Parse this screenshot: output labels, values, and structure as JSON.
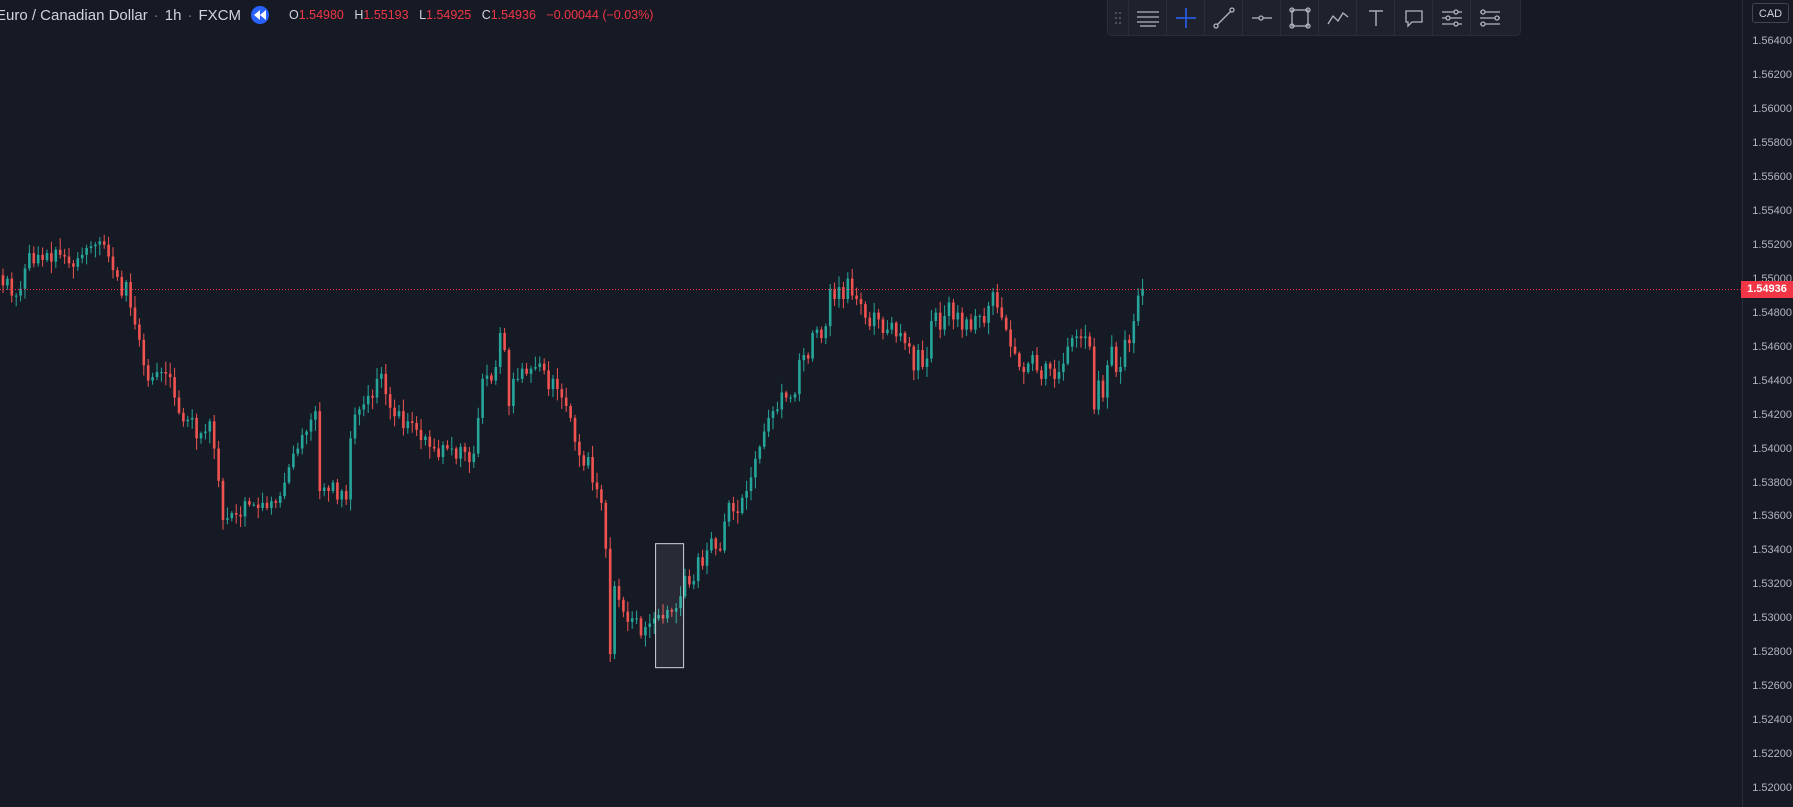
{
  "legend": {
    "symbol": "Euro / Canadian Dollar",
    "interval": "1h",
    "exchange": "FXCM",
    "open_label": "O",
    "open": "1.54980",
    "high_label": "H",
    "high": "1.55193",
    "low_label": "L",
    "low": "1.54925",
    "close_label": "C",
    "close": "1.54936",
    "change": "−0.00044 (−0.03%)"
  },
  "toolbar": {
    "tools": [
      "grip-icon",
      "horizontal-lines-icon",
      "crosshair-icon",
      "trend-line-icon",
      "horizontal-ray-icon",
      "rectangle-icon",
      "path-icon",
      "text-icon",
      "callout-icon",
      "settings-lines-icon",
      "object-tree-icon"
    ]
  },
  "price_axis": {
    "currency_button": "CAD",
    "current_price_badge": "1.54936"
  },
  "colors": {
    "background": "#161a25",
    "up": "#26a69a",
    "down": "#ef5350",
    "price_line": "#f23645",
    "accent": "#2962ff"
  },
  "chart_data": {
    "type": "candlestick",
    "title": "Euro / Canadian Dollar · 1h · FXCM",
    "ylim": [
      1.5189,
      1.5664
    ],
    "y_ticks": [
      "1.56400",
      "1.56200",
      "1.56000",
      "1.55800",
      "1.55600",
      "1.55400",
      "1.55200",
      "1.55000",
      "1.54800",
      "1.54600",
      "1.54400",
      "1.54200",
      "1.54000",
      "1.53800",
      "1.53600",
      "1.53400",
      "1.53200",
      "1.53000",
      "1.52800",
      "1.52600",
      "1.52400",
      "1.52200",
      "1.52000"
    ],
    "current_price": 1.54936,
    "highlighted_candle_index": 151,
    "close_series": [
      1.5496,
      1.55,
      1.549,
      1.549,
      1.5494,
      1.5506,
      1.5515,
      1.5509,
      1.5514,
      1.5511,
      1.5515,
      1.551,
      1.5517,
      1.5514,
      1.5513,
      1.5509,
      1.5507,
      1.5512,
      1.5514,
      1.5518,
      1.5519,
      1.552,
      1.5522,
      1.552,
      1.5513,
      1.5505,
      1.5501,
      1.549,
      1.5498,
      1.5483,
      1.5473,
      1.5464,
      1.5449,
      1.544,
      1.5442,
      1.5445,
      1.5445,
      1.5444,
      1.5442,
      1.543,
      1.5421,
      1.5416,
      1.5417,
      1.5418,
      1.5406,
      1.5409,
      1.541,
      1.5416,
      1.54,
      1.5381,
      1.5358,
      1.5359,
      1.5362,
      1.5361,
      1.536,
      1.5369,
      1.5367,
      1.5367,
      1.5365,
      1.5368,
      1.5365,
      1.5369,
      1.5368,
      1.5372,
      1.538,
      1.5389,
      1.5397,
      1.54,
      1.5408,
      1.541,
      1.5417,
      1.5422,
      1.5375,
      1.5377,
      1.5375,
      1.538,
      1.537,
      1.5375,
      1.537,
      1.5406,
      1.542,
      1.5423,
      1.5426,
      1.5431,
      1.543,
      1.5441,
      1.5444,
      1.5432,
      1.5424,
      1.5419,
      1.5422,
      1.5412,
      1.5416,
      1.5415,
      1.5411,
      1.5405,
      1.5407,
      1.5401,
      1.54,
      1.5395,
      1.5402,
      1.54,
      1.54,
      1.5394,
      1.5401,
      1.5398,
      1.5392,
      1.5397,
      1.5418,
      1.5441,
      1.5443,
      1.544,
      1.5448,
      1.5468,
      1.5458,
      1.5425,
      1.5441,
      1.5441,
      1.5447,
      1.5444,
      1.5447,
      1.5448,
      1.545,
      1.5446,
      1.5435,
      1.5441,
      1.5435,
      1.543,
      1.5425,
      1.5418,
      1.5404,
      1.5396,
      1.539,
      1.5395,
      1.538,
      1.5376,
      1.5368,
      1.5341,
      1.5279,
      1.5319,
      1.5311,
      1.5304,
      1.5298,
      1.53,
      1.53,
      1.529,
      1.5295,
      1.5297,
      1.53,
      1.5302,
      1.53,
      1.5305,
      1.5304,
      1.5306,
      1.5313,
      1.5325,
      1.532,
      1.5322,
      1.5336,
      1.5331,
      1.534,
      1.5347,
      1.5341,
      1.534,
      1.5357,
      1.5368,
      1.5363,
      1.5362,
      1.5371,
      1.5375,
      1.5383,
      1.5394,
      1.5401,
      1.541,
      1.5418,
      1.5422,
      1.5423,
      1.5433,
      1.543,
      1.543,
      1.5432,
      1.5452,
      1.5455,
      1.5453,
      1.5468,
      1.547,
      1.5465,
      1.5472,
      1.5494,
      1.5488,
      1.5495,
      1.5488,
      1.55,
      1.549,
      1.5488,
      1.5485,
      1.5477,
      1.5472,
      1.548,
      1.5476,
      1.5468,
      1.547,
      1.5474,
      1.5466,
      1.5468,
      1.5462,
      1.546,
      1.5446,
      1.5458,
      1.5448,
      1.5453,
      1.5475,
      1.548,
      1.547,
      1.5478,
      1.5486,
      1.5476,
      1.548,
      1.547,
      1.5476,
      1.547,
      1.5478,
      1.5478,
      1.5474,
      1.5484,
      1.5492,
      1.5483,
      1.5477,
      1.547,
      1.546,
      1.5456,
      1.5448,
      1.5445,
      1.545,
      1.5455,
      1.5446,
      1.5441,
      1.545,
      1.5447,
      1.5441,
      1.5445,
      1.545,
      1.546,
      1.5465,
      1.5466,
      1.5465,
      1.5466,
      1.546,
      1.5423,
      1.544,
      1.543,
      1.5449,
      1.546,
      1.5445,
      1.5448,
      1.5464,
      1.5462,
      1.5475,
      1.549,
      1.5494
    ]
  }
}
